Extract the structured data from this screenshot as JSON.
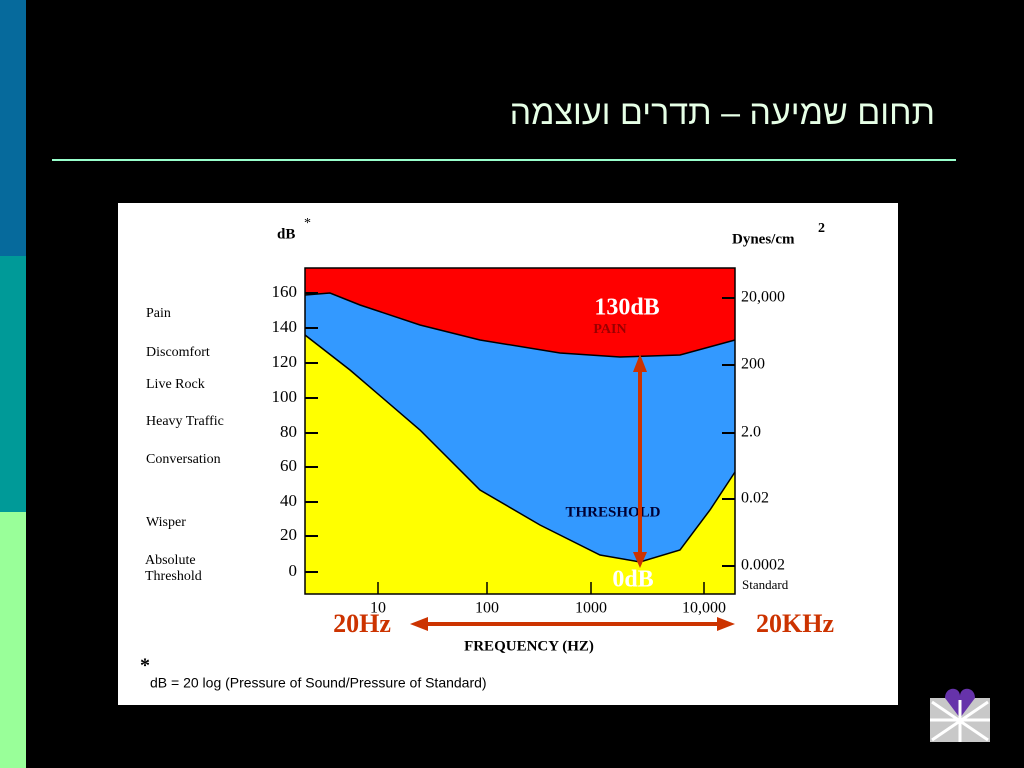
{
  "slide": {
    "title": "תחום שמיעה – תדרים ועוצמה"
  },
  "figure": {
    "left_unit": "dB",
    "left_unit_mark": "*",
    "right_unit": "Dynes/cm",
    "right_unit_power": "2",
    "left_ticks": [
      "160",
      "140",
      "120",
      "100",
      "80",
      "60",
      "40",
      "20",
      "0"
    ],
    "right_ticks": [
      "20,000",
      "200",
      "2.0",
      "0.02",
      "0.0002"
    ],
    "right_standard": "Standard",
    "levels": [
      "Pain",
      "Discomfort",
      "Live Rock",
      "Heavy Traffic",
      "Conversation",
      "Wisper"
    ],
    "absolute_threshold": [
      "Absolute",
      "Threshold"
    ],
    "x_ticks": [
      "10",
      "100",
      "1000",
      "10,000"
    ],
    "x_label": "FREQUENCY  (HZ)",
    "pain_label": "PAIN",
    "threshold_label": "THRESHOLD",
    "footnote_mark": "*",
    "footnote": "dB = 20 log (Pressure of Sound/Pressure of Standard)"
  },
  "annotations": {
    "top": "130dB",
    "bottom": "0dB",
    "left": "20Hz",
    "right": "20KHz"
  }
}
